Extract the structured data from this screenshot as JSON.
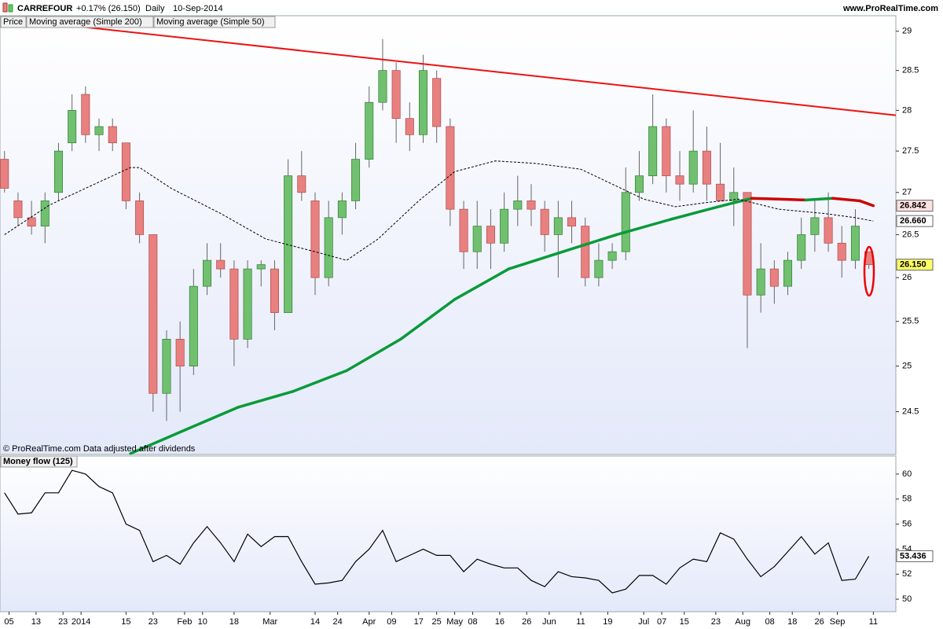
{
  "header": {
    "symbol": "CARREFOUR",
    "change": "+0.17% (26.150)",
    "interval": "Daily",
    "date": "10-Sep-2014",
    "website": "www.ProRealTime.com"
  },
  "chart_data": [
    {
      "type": "candlestick",
      "name": "Price",
      "log_scale": true,
      "footnote": "© ProRealTime.com  Data adjusted after dividends",
      "up_color": "#70c070",
      "down_color": "#e88080",
      "wick_color": "#666666",
      "xlim": [
        -1,
        198
      ],
      "ylim": [
        24.04,
        29.2
      ],
      "yticks": [
        24.5,
        25,
        25.5,
        26,
        26.5,
        27,
        27.5,
        28,
        28.5,
        29
      ],
      "x": [
        0,
        3,
        6,
        9,
        12,
        15,
        18,
        21,
        24,
        27,
        30,
        33,
        36,
        39,
        42,
        45,
        48,
        51,
        54,
        57,
        60,
        63,
        66,
        69,
        72,
        75,
        78,
        81,
        84,
        87,
        90,
        93,
        96,
        99,
        102,
        105,
        108,
        111,
        114,
        117,
        120,
        123,
        126,
        129,
        132,
        135,
        138,
        141,
        144,
        147,
        150,
        153,
        156,
        159,
        162,
        165,
        168,
        171,
        174,
        177,
        180,
        183,
        186,
        189,
        192
      ],
      "open": [
        27.4,
        26.9,
        26.7,
        26.6,
        27.0,
        27.6,
        28.2,
        27.7,
        27.8,
        27.6,
        26.9,
        26.5,
        24.7,
        25.3,
        25.0,
        25.9,
        26.2,
        26.1,
        25.3,
        26.1,
        26.1,
        25.6,
        27.2,
        26.9,
        26.0,
        26.7,
        26.9,
        27.4,
        28.1,
        28.5,
        27.9,
        27.7,
        28.4,
        27.8,
        26.8,
        26.3,
        26.6,
        26.4,
        26.8,
        26.9,
        26.8,
        26.5,
        26.7,
        26.6,
        26.0,
        26.2,
        26.3,
        27.0,
        27.2,
        27.8,
        27.2,
        27.1,
        27.5,
        27.1,
        26.9,
        27.0,
        25.8,
        26.1,
        25.9,
        26.2,
        26.5,
        26.7,
        26.4,
        26.2,
        26.3
      ],
      "high": [
        27.5,
        27.0,
        26.9,
        27.0,
        27.6,
        28.2,
        28.3,
        27.9,
        27.9,
        27.6,
        27.0,
        26.5,
        25.4,
        25.5,
        26.1,
        26.4,
        26.4,
        26.2,
        26.2,
        26.2,
        26.2,
        27.4,
        27.5,
        27.0,
        26.9,
        27.0,
        27.6,
        28.3,
        28.9,
        28.6,
        28.1,
        28.7,
        28.5,
        27.9,
        26.9,
        26.9,
        26.8,
        27.0,
        27.2,
        27.1,
        26.9,
        26.9,
        26.9,
        26.7,
        26.4,
        26.4,
        27.3,
        27.5,
        28.2,
        27.9,
        27.5,
        28.0,
        27.8,
        27.6,
        27.3,
        27.0,
        26.4,
        26.2,
        26.3,
        26.7,
        26.9,
        27.0,
        26.6,
        26.8,
        26.3
      ],
      "low": [
        27.0,
        26.6,
        26.5,
        26.4,
        26.9,
        27.5,
        27.6,
        27.5,
        27.5,
        26.8,
        26.4,
        24.5,
        24.4,
        24.5,
        24.9,
        25.8,
        26.0,
        25.0,
        25.2,
        25.9,
        25.4,
        25.6,
        26.9,
        25.8,
        25.9,
        26.5,
        26.8,
        27.3,
        28.0,
        27.6,
        27.5,
        27.6,
        27.6,
        26.6,
        26.1,
        26.1,
        26.1,
        26.3,
        26.6,
        26.6,
        26.3,
        26.0,
        26.4,
        25.9,
        25.9,
        26.1,
        26.2,
        26.9,
        27.1,
        27.0,
        26.9,
        27.0,
        26.9,
        26.9,
        26.6,
        25.2,
        25.6,
        25.7,
        25.8,
        26.1,
        26.3,
        26.3,
        26.0,
        26.1,
        26.1
      ],
      "close": [
        27.05,
        26.7,
        26.6,
        26.9,
        27.5,
        28.0,
        27.7,
        27.8,
        27.6,
        26.9,
        26.5,
        24.7,
        25.3,
        25.0,
        25.9,
        26.2,
        26.1,
        25.3,
        26.1,
        26.15,
        25.6,
        27.2,
        27.0,
        26.0,
        26.7,
        26.9,
        27.4,
        28.1,
        28.5,
        27.9,
        27.7,
        28.5,
        27.8,
        26.8,
        26.3,
        26.6,
        26.4,
        26.8,
        26.9,
        26.8,
        26.5,
        26.7,
        26.6,
        26.0,
        26.2,
        26.3,
        27.0,
        27.2,
        27.8,
        27.2,
        27.1,
        27.5,
        27.1,
        26.9,
        27.0,
        25.8,
        26.1,
        25.9,
        26.2,
        26.5,
        26.7,
        26.4,
        26.2,
        26.6,
        26.15
      ],
      "last_label": "26.150",
      "last_label_color": "#ffff66",
      "overlays": [
        {
          "name": "Moving average (Simple 200)",
          "up_color": "#0a9a3a",
          "down_color": "#cc0000",
          "label_bg": "#ffe0e0",
          "x": [
            28,
            40,
            52,
            64,
            76,
            88,
            100,
            112,
            124,
            136,
            148,
            160,
            166,
            172,
            178,
            184,
            190,
            193
          ],
          "values": [
            24.05,
            24.3,
            24.55,
            24.72,
            24.95,
            25.3,
            25.75,
            26.1,
            26.3,
            26.5,
            26.68,
            26.85,
            26.93,
            26.92,
            26.91,
            26.93,
            26.9,
            26.842
          ],
          "last_label": "26.842"
        },
        {
          "name": "Moving average (Simple 50)",
          "color": "#000000",
          "dashed": true,
          "label_bg": "#ffffff",
          "x": [
            0,
            10,
            20,
            28,
            30,
            37,
            48,
            58,
            69,
            76,
            83,
            92,
            100,
            109,
            118,
            128,
            135,
            142,
            149,
            156,
            163,
            172,
            182,
            189,
            193
          ],
          "values": [
            26.5,
            26.85,
            27.1,
            27.3,
            27.3,
            27.05,
            26.75,
            26.45,
            26.3,
            26.2,
            26.45,
            26.9,
            27.25,
            27.38,
            27.35,
            27.28,
            27.1,
            26.92,
            26.83,
            26.88,
            26.92,
            26.8,
            26.75,
            26.7,
            26.66
          ],
          "last_label": "26.660"
        }
      ],
      "trendline": {
        "x": [
          15,
          198
        ],
        "values": [
          29.07,
          27.94
        ],
        "color": "#ee1111"
      }
    },
    {
      "type": "line",
      "title": "Money flow (125)",
      "color": "#000000",
      "xlim": [
        -1,
        198
      ],
      "xticks": [
        {
          "value": 1,
          "label": "05"
        },
        {
          "value": 7,
          "label": "13"
        },
        {
          "value": 13,
          "label": "23"
        },
        {
          "value": 17,
          "label": "2014"
        },
        {
          "value": 27,
          "label": "15"
        },
        {
          "value": 33,
          "label": "23"
        },
        {
          "value": 40,
          "label": "Feb"
        },
        {
          "value": 44,
          "label": "10"
        },
        {
          "value": 51,
          "label": "18"
        },
        {
          "value": 59,
          "label": "Mar"
        },
        {
          "value": 69,
          "label": "14"
        },
        {
          "value": 74,
          "label": "24"
        },
        {
          "value": 81,
          "label": "Apr"
        },
        {
          "value": 86,
          "label": "09"
        },
        {
          "value": 92,
          "label": "17"
        },
        {
          "value": 96,
          "label": "25"
        },
        {
          "value": 100,
          "label": "May"
        },
        {
          "value": 104,
          "label": "08"
        },
        {
          "value": 110,
          "label": "16"
        },
        {
          "value": 116,
          "label": "26"
        },
        {
          "value": 121,
          "label": "Jun"
        },
        {
          "value": 128,
          "label": "11"
        },
        {
          "value": 134,
          "label": "19"
        },
        {
          "value": 142,
          "label": "Jul"
        },
        {
          "value": 146,
          "label": "07"
        },
        {
          "value": 151,
          "label": "15"
        },
        {
          "value": 158,
          "label": "23"
        },
        {
          "value": 164,
          "label": "Aug"
        },
        {
          "value": 170,
          "label": "08"
        },
        {
          "value": 175,
          "label": "18"
        },
        {
          "value": 181,
          "label": "26"
        },
        {
          "value": 185,
          "label": "Sep"
        },
        {
          "value": 193,
          "label": "11"
        }
      ],
      "ylim": [
        49,
        61.44
      ],
      "yticks": [
        50,
        52,
        54,
        56,
        58,
        60
      ],
      "x": [
        0,
        3,
        6,
        9,
        12,
        15,
        18,
        21,
        24,
        27,
        30,
        33,
        36,
        39,
        42,
        45,
        48,
        51,
        54,
        57,
        60,
        63,
        66,
        69,
        72,
        75,
        78,
        81,
        84,
        87,
        90,
        93,
        96,
        99,
        102,
        105,
        108,
        111,
        114,
        117,
        120,
        123,
        126,
        129,
        132,
        135,
        138,
        141,
        144,
        147,
        150,
        153,
        156,
        159,
        162,
        165,
        168,
        171,
        174,
        177,
        180,
        183,
        186,
        189,
        192
      ],
      "values": [
        58.5,
        56.8,
        56.9,
        58.5,
        58.5,
        60.3,
        60,
        59,
        58.5,
        56,
        55.5,
        53,
        53.5,
        52.8,
        54.5,
        55.8,
        54.5,
        53,
        55.2,
        54.2,
        55,
        55,
        53,
        51.2,
        51.3,
        51.5,
        53,
        54,
        55.5,
        53,
        53.5,
        54,
        53.5,
        53.5,
        52.2,
        53.2,
        52.8,
        52.5,
        52.5,
        51.5,
        51,
        52.2,
        51.8,
        51.7,
        51.5,
        50.5,
        50.8,
        51.9,
        51.9,
        51.2,
        52.5,
        53.2,
        53,
        55.3,
        54.8,
        53.2,
        51.8,
        52.6,
        53.8,
        55,
        53.6,
        54.5,
        51.5,
        51.6,
        53.436
      ],
      "last_label": "53.436"
    }
  ]
}
